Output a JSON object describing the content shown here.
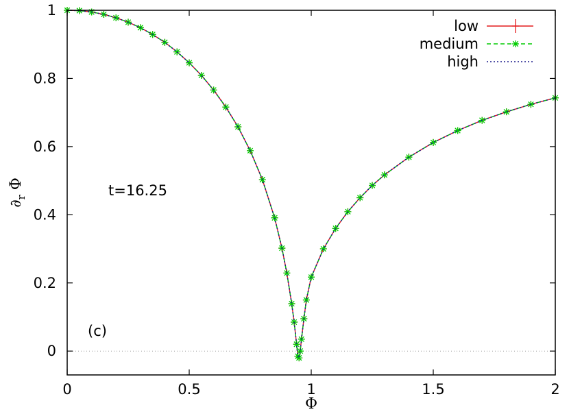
{
  "chart_data": {
    "type": "line",
    "xlabel": "Φ",
    "ylabel_main": "∂",
    "ylabel_sub": "r",
    "ylabel_tail": " Φ",
    "xlim": [
      0,
      2
    ],
    "ylim": [
      -0.07,
      1
    ],
    "x_ticks": [
      0,
      0.5,
      1,
      1.5,
      2
    ],
    "x_tick_labels": [
      "0",
      "0.5",
      "1",
      "1.5",
      "2"
    ],
    "y_ticks": [
      0,
      0.2,
      0.4,
      0.6,
      0.8,
      1
    ],
    "y_tick_labels": [
      "0",
      "0.2",
      "0.4",
      "0.6",
      "0.8",
      "1"
    ],
    "zero_line": true,
    "legend_position": "top-right",
    "annotations": {
      "time": "t=16.25",
      "panel": "(c)"
    },
    "series": [
      {
        "name": "low",
        "color": "#e41a1c",
        "marker": "plus",
        "line": "solid",
        "x": [
          0.0,
          0.05,
          0.1,
          0.15,
          0.2,
          0.25,
          0.3,
          0.35,
          0.4,
          0.45,
          0.5,
          0.55,
          0.6,
          0.65,
          0.7,
          0.75,
          0.8,
          0.85,
          0.88,
          0.9,
          0.92,
          0.93,
          0.94,
          0.945,
          0.95,
          0.955,
          0.96,
          0.97,
          0.98,
          1.0,
          1.05,
          1.1,
          1.15,
          1.2,
          1.25,
          1.3,
          1.4,
          1.5,
          1.6,
          1.7,
          1.8,
          1.9,
          2.0
        ],
        "y": [
          1.0,
          0.999,
          0.995,
          0.988,
          0.978,
          0.965,
          0.949,
          0.929,
          0.906,
          0.878,
          0.846,
          0.809,
          0.766,
          0.716,
          0.658,
          0.588,
          0.503,
          0.391,
          0.302,
          0.229,
          0.139,
          0.085,
          0.02,
          -0.015,
          -0.02,
          0.0,
          0.035,
          0.095,
          0.15,
          0.217,
          0.3,
          0.36,
          0.409,
          0.45,
          0.486,
          0.517,
          0.569,
          0.612,
          0.647,
          0.677,
          0.702,
          0.724,
          0.743
        ]
      },
      {
        "name": "medium",
        "color": "#00cc00",
        "marker": "star",
        "line": "dashed",
        "x": [
          0.0,
          0.05,
          0.1,
          0.15,
          0.2,
          0.25,
          0.3,
          0.35,
          0.4,
          0.45,
          0.5,
          0.55,
          0.6,
          0.65,
          0.7,
          0.75,
          0.8,
          0.85,
          0.88,
          0.9,
          0.92,
          0.93,
          0.94,
          0.945,
          0.95,
          0.955,
          0.96,
          0.97,
          0.98,
          1.0,
          1.05,
          1.1,
          1.15,
          1.2,
          1.25,
          1.3,
          1.4,
          1.5,
          1.6,
          1.7,
          1.8,
          1.9,
          2.0
        ],
        "y": [
          1.0,
          0.999,
          0.995,
          0.988,
          0.978,
          0.965,
          0.949,
          0.929,
          0.906,
          0.878,
          0.846,
          0.809,
          0.766,
          0.716,
          0.658,
          0.588,
          0.503,
          0.391,
          0.302,
          0.229,
          0.139,
          0.085,
          0.02,
          -0.015,
          -0.02,
          0.0,
          0.035,
          0.095,
          0.15,
          0.217,
          0.3,
          0.36,
          0.409,
          0.45,
          0.486,
          0.517,
          0.569,
          0.612,
          0.647,
          0.677,
          0.702,
          0.724,
          0.743
        ]
      },
      {
        "name": "high",
        "color": "#1a1a8c",
        "marker": "none",
        "line": "dotted",
        "x": [
          0.0,
          0.05,
          0.1,
          0.15,
          0.2,
          0.25,
          0.3,
          0.35,
          0.4,
          0.45,
          0.5,
          0.55,
          0.6,
          0.65,
          0.7,
          0.75,
          0.8,
          0.85,
          0.88,
          0.9,
          0.92,
          0.93,
          0.94,
          0.945,
          0.95,
          0.955,
          0.96,
          0.97,
          0.98,
          1.0,
          1.05,
          1.1,
          1.15,
          1.2,
          1.25,
          1.3,
          1.4,
          1.5,
          1.6,
          1.7,
          1.8,
          1.9,
          2.0
        ],
        "y": [
          1.0,
          0.999,
          0.995,
          0.988,
          0.978,
          0.965,
          0.949,
          0.929,
          0.906,
          0.878,
          0.846,
          0.809,
          0.766,
          0.716,
          0.658,
          0.588,
          0.503,
          0.391,
          0.302,
          0.229,
          0.139,
          0.085,
          0.02,
          -0.015,
          -0.02,
          0.0,
          0.035,
          0.095,
          0.15,
          0.217,
          0.3,
          0.36,
          0.409,
          0.45,
          0.486,
          0.517,
          0.569,
          0.612,
          0.647,
          0.677,
          0.702,
          0.724,
          0.743
        ]
      }
    ]
  }
}
